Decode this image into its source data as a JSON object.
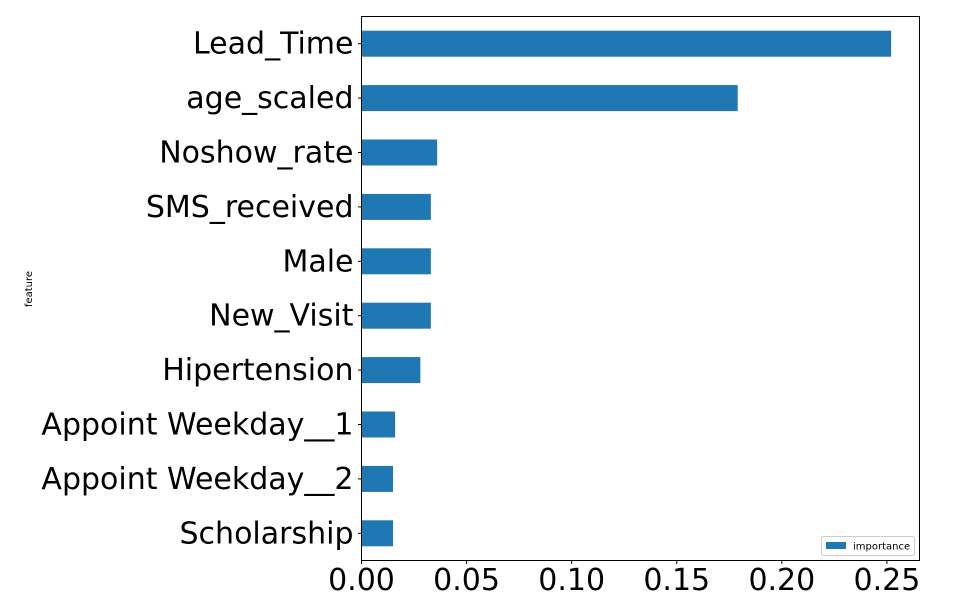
{
  "chart_data": {
    "type": "bar",
    "orientation": "horizontal",
    "title": "",
    "xlabel": "",
    "ylabel": "feature",
    "categories": [
      "Lead_Time",
      "age_scaled",
      "Noshow_rate",
      "SMS_received",
      "Male",
      "New_Visit",
      "Hipertension",
      "Appoint Weekday__1",
      "Appoint Weekday__2",
      "Scholarship"
    ],
    "series": [
      {
        "name": "importance",
        "values": [
          0.252,
          0.179,
          0.036,
          0.033,
          0.033,
          0.033,
          0.028,
          0.016,
          0.015,
          0.015
        ],
        "color": "#1f77b4"
      }
    ],
    "xlim": [
      0.0,
      0.2655
    ],
    "xticks": [
      0.0,
      0.05,
      0.1,
      0.15,
      0.2,
      0.25
    ],
    "xtick_labels": [
      "0.00",
      "0.05",
      "0.10",
      "0.15",
      "0.20",
      "0.25"
    ],
    "grid": false,
    "legend": {
      "position": "bottom-right",
      "entries": [
        "importance"
      ]
    }
  }
}
